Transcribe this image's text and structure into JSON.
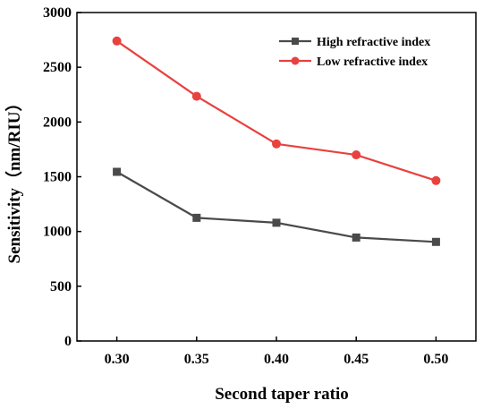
{
  "chart_data": {
    "type": "line",
    "title": "",
    "xlabel": "Second taper ratio",
    "ylabel": "Sensitivity（nm/RIU）",
    "x": [
      0.3,
      0.35,
      0.4,
      0.45,
      0.5
    ],
    "x_tick_labels": [
      "0.30",
      "0.35",
      "0.40",
      "0.45",
      "0.50"
    ],
    "xlim": [
      0.275,
      0.525
    ],
    "ylim": [
      0,
      3000
    ],
    "y_ticks": [
      0,
      500,
      1000,
      1500,
      2000,
      2500,
      3000
    ],
    "y_tick_labels": [
      "0",
      "500",
      "1000",
      "1500",
      "2000",
      "2500",
      "3000"
    ],
    "grid": false,
    "legend_position": "top-right",
    "series": [
      {
        "name": "High refractive index",
        "color": "#4a4a4a",
        "marker": "square",
        "values": [
          1545,
          1125,
          1080,
          945,
          905
        ]
      },
      {
        "name": "Low refractive index",
        "color": "#e8413f",
        "marker": "circle",
        "values": [
          2740,
          2235,
          1800,
          1700,
          1465
        ]
      }
    ]
  }
}
